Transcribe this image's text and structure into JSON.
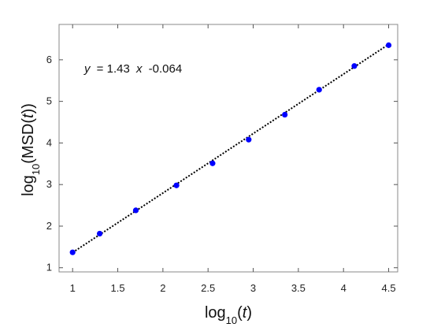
{
  "chart_data": {
    "type": "scatter",
    "title": "",
    "xlabel": "log10(t)",
    "ylabel": "log10(MSD(t))",
    "xlim": [
      0.85,
      4.6
    ],
    "ylim": [
      0.9,
      6.85
    ],
    "xticks": [
      1,
      1.5,
      2,
      2.5,
      3,
      3.5,
      4,
      4.5
    ],
    "yticks": [
      1,
      2,
      3,
      4,
      5,
      6
    ],
    "xtick_labels": [
      "1",
      "1.5",
      "2",
      "2.5",
      "3",
      "3.5",
      "4",
      "4.5"
    ],
    "ytick_labels": [
      "1",
      "2",
      "3",
      "4",
      "5",
      "6"
    ],
    "grid": false,
    "series": [
      {
        "type": "scatter",
        "color": "#0000ff",
        "x": [
          1.0,
          1.3,
          1.7,
          2.15,
          2.55,
          2.95,
          3.35,
          3.73,
          4.12,
          4.5
        ],
        "y": [
          1.37,
          1.82,
          2.38,
          2.98,
          3.51,
          4.08,
          4.68,
          5.28,
          5.85,
          6.35
        ]
      },
      {
        "type": "line",
        "style": "dotted",
        "color": "#000000",
        "fit": {
          "slope": 1.43,
          "intercept": -0.064
        },
        "x": [
          1.0,
          4.5
        ]
      }
    ],
    "annotation": {
      "y_var": "y",
      "equals": "= 1.43",
      "x_var": "x",
      "tail": "-0.064"
    }
  }
}
